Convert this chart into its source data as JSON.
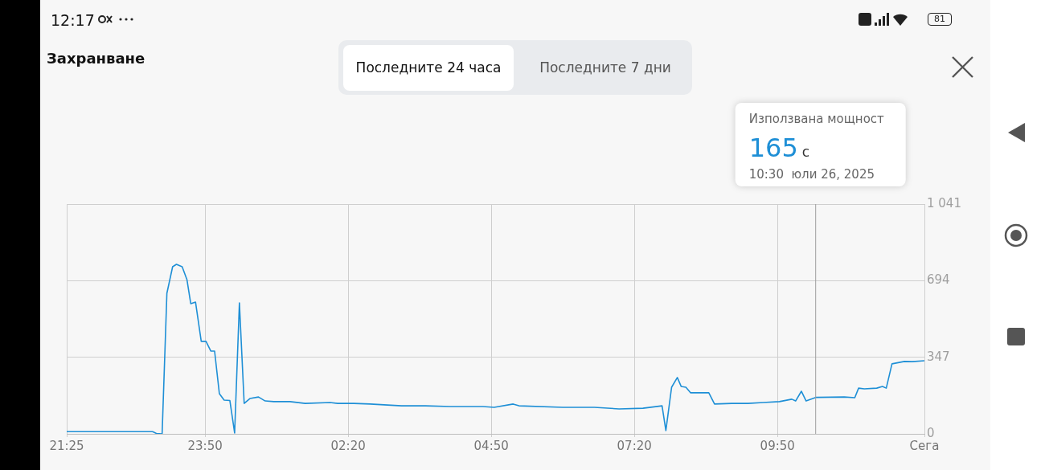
{
  "chart_data": {
    "type": "line",
    "title": "Захранване",
    "annotations": [
      "12:17",
      "81",
      "Последните 24 часа",
      "Последните 7 дни",
      "Използвана мощност",
      "10:30  юли 26, 2025",
      "165",
      "с"
    ],
    "ref_lines": [
      {
        "axis": "x",
        "value": "2025-07-26T10:30",
        "color": "#9e9e9e"
      }
    ],
    "x": [
      "2025-07-25T21:25",
      "2025-07-25T22:55",
      "2025-07-25T22:59",
      "2025-07-25T23:05",
      "2025-07-25T23:10",
      "2025-07-25T23:16",
      "2025-07-25T23:20",
      "2025-07-25T23:26",
      "2025-07-25T23:31",
      "2025-07-25T23:35",
      "2025-07-25T23:40",
      "2025-07-25T23:46",
      "2025-07-25T23:51",
      "2025-07-25T23:56",
      "2025-07-26T00:00",
      "2025-07-26T00:05",
      "2025-07-26T00:10",
      "2025-07-26T00:16",
      "2025-07-26T00:21",
      "2025-07-26T00:26",
      "2025-07-26T00:31",
      "2025-07-26T00:37",
      "2025-07-26T00:46",
      "2025-07-26T00:53",
      "2025-07-26T01:02",
      "2025-07-26T01:19",
      "2025-07-26T01:35",
      "2025-07-26T02:01",
      "2025-07-26T02:09",
      "2025-07-26T02:26",
      "2025-07-26T02:43",
      "2025-07-26T03:16",
      "2025-07-26T03:41",
      "2025-07-26T04:07",
      "2025-07-26T04:41",
      "2025-07-26T04:53",
      "2025-07-26T05:13",
      "2025-07-26T05:19",
      "2025-07-26T06:05",
      "2025-07-26T06:38",
      "2025-07-26T07:04",
      "2025-07-26T07:29",
      "2025-07-26T07:49",
      "2025-07-26T07:53",
      "2025-07-26T07:59",
      "2025-07-26T08:05",
      "2025-07-26T08:09",
      "2025-07-26T08:14",
      "2025-07-26T08:19",
      "2025-07-26T08:28",
      "2025-07-26T08:38",
      "2025-07-26T08:44",
      "2025-07-26T09:02",
      "2025-07-26T09:19",
      "2025-07-26T09:35",
      "2025-07-26T09:52",
      "2025-07-26T10:05",
      "2025-07-26T10:09",
      "2025-07-26T10:15",
      "2025-07-26T10:20",
      "2025-07-26T10:30",
      "2025-07-26T11:00",
      "2025-07-26T11:11",
      "2025-07-26T11:15",
      "2025-07-26T11:21",
      "2025-07-26T11:34",
      "2025-07-26T11:40",
      "2025-07-26T11:44",
      "2025-07-26T11:50",
      "2025-07-26T12:03",
      "2025-07-26T12:11",
      "2025-07-26T12:24"
    ],
    "series": [
      {
        "color": "#1e8fd6",
        "values": [
          10,
          10,
          2,
          0,
          637,
          757,
          768,
          757,
          699,
          590,
          597,
          419,
          419,
          375,
          375,
          182,
          153,
          151,
          4,
          593,
          138,
          160,
          167,
          149,
          146,
          146,
          138,
          142,
          138,
          138,
          135,
          127,
          127,
          124,
          124,
          120,
          135,
          127,
          120,
          120,
          113,
          116,
          127,
          15,
          211,
          255,
          215,
          211,
          186,
          186,
          186,
          135,
          138,
          138,
          142,
          146,
          157,
          149,
          193,
          149,
          165,
          167,
          164,
          207,
          204,
          207,
          215,
          207,
          317,
          328,
          327,
          331
        ]
      }
    ],
    "xlim": [
      "2025-07-25T21:25",
      "2025-07-26T12:24"
    ],
    "xticks": [
      {
        "value": "2025-07-25T21:25",
        "label": "21:25"
      },
      {
        "value": "2025-07-25T23:50",
        "label": "23:50"
      },
      {
        "value": "2025-07-26T02:20",
        "label": "02:20"
      },
      {
        "value": "2025-07-26T04:50",
        "label": "04:50"
      },
      {
        "value": "2025-07-26T07:20",
        "label": "07:20"
      },
      {
        "value": "2025-07-26T09:50",
        "label": "09:50"
      },
      {
        "value": "2025-07-26T12:24",
        "label": "Сега"
      }
    ],
    "ylim": [
      0,
      1041
    ],
    "yticks": [
      0,
      347,
      694,
      {
        "value": 1041,
        "label": "1 041"
      }
    ],
    "grid": true,
    "legend": false,
    "marker": "none",
    "line_style": "solid"
  }
}
